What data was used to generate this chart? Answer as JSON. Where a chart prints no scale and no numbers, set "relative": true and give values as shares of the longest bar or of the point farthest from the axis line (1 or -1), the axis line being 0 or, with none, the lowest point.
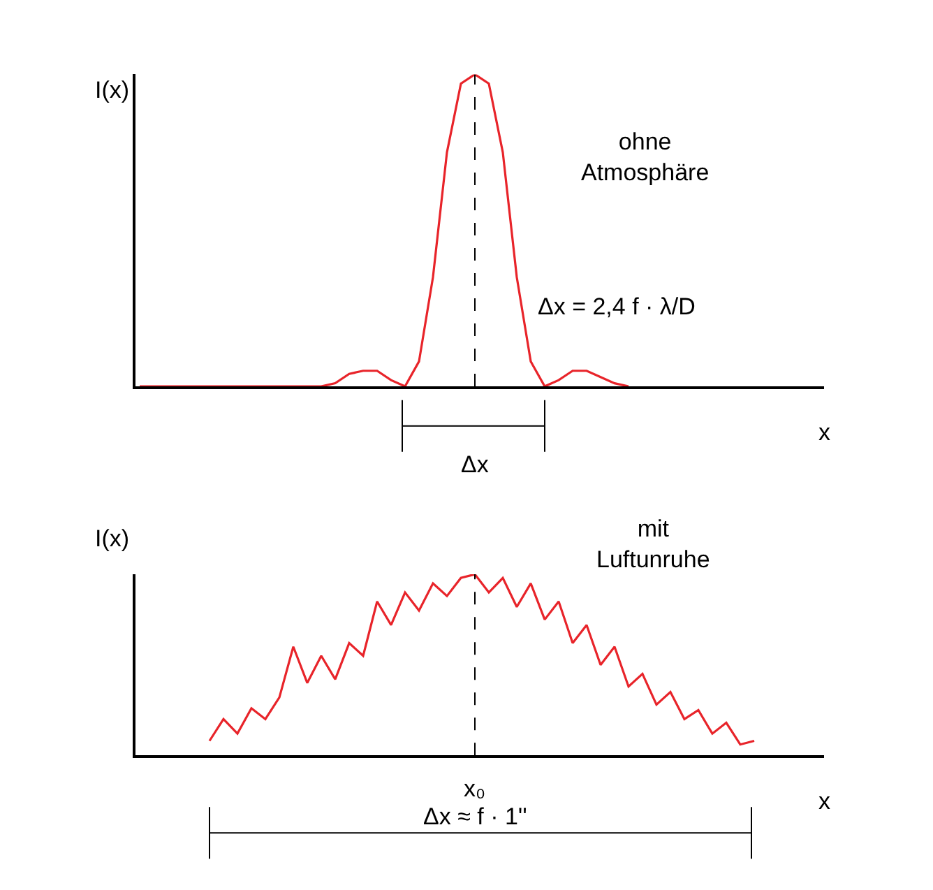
{
  "chart_data": [
    {
      "type": "line",
      "relative": true,
      "ylabel": "I(x)",
      "xlabel": "x",
      "categories": [
        null,
        null,
        null,
        null,
        null,
        null,
        null,
        null,
        null,
        null,
        null,
        null,
        null,
        null,
        null,
        null,
        null,
        null,
        null,
        null,
        null,
        null,
        null,
        null,
        null,
        null,
        null,
        null,
        null,
        null,
        null,
        null,
        null,
        null,
        null,
        null,
        null,
        null,
        null,
        null,
        null,
        null,
        null,
        null,
        null,
        null,
        null,
        null,
        null,
        null
      ],
      "series": [
        {
          "color": "#e8242a",
          "values": [
            0,
            0,
            0,
            0,
            0,
            0,
            0,
            0,
            0,
            0,
            0,
            0,
            0,
            0,
            0.01,
            0.04,
            0.05,
            0.05,
            0.02,
            0,
            0.08,
            0.35,
            0.75,
            0.97,
            1,
            0.97,
            0.75,
            0.35,
            0.08,
            0,
            0.02,
            0.05,
            0.05,
            0.03,
            0.01,
            0,
            null,
            null,
            null,
            null,
            null,
            null,
            null,
            null,
            null,
            null,
            null,
            null,
            null,
            null
          ]
        }
      ],
      "annotations": [
        "ohne Atmosphäre",
        "Δx = 2,4 f · λ/D",
        "Δx"
      ],
      "marker": "none",
      "line_style": "solid"
    },
    {
      "type": "line",
      "relative": true,
      "ylabel": "I(x)",
      "xlabel": "x",
      "categories": [
        null,
        null,
        null,
        null,
        null,
        null,
        null,
        null,
        null,
        null,
        null,
        null,
        null,
        null,
        null,
        null,
        null,
        null,
        null,
        null,
        null,
        null,
        null,
        null,
        null,
        null,
        null,
        null,
        null,
        null,
        null,
        null,
        null,
        null,
        null,
        null,
        null,
        null,
        null,
        null,
        null,
        null,
        null,
        null,
        null,
        null,
        null,
        null,
        null,
        null
      ],
      "series": [
        {
          "color": "#e8242a",
          "values": [
            null,
            null,
            null,
            null,
            null,
            0.08,
            0.2,
            0.12,
            0.26,
            0.2,
            0.32,
            0.6,
            0.4,
            0.55,
            0.42,
            0.62,
            0.55,
            0.85,
            0.72,
            0.9,
            0.8,
            0.95,
            0.88,
            0.98,
            1,
            0.9,
            0.98,
            0.82,
            0.95,
            0.75,
            0.85,
            0.62,
            0.72,
            0.5,
            0.6,
            0.38,
            0.45,
            0.28,
            0.35,
            0.2,
            0.25,
            0.12,
            0.18,
            0.06,
            0.08,
            null,
            null,
            null,
            null,
            null
          ]
        }
      ],
      "annotations": [
        "mit Luftunruhe",
        "x₀",
        "Δx ≈ f · 1''"
      ],
      "marker": "none",
      "line_style": "solid"
    }
  ]
}
